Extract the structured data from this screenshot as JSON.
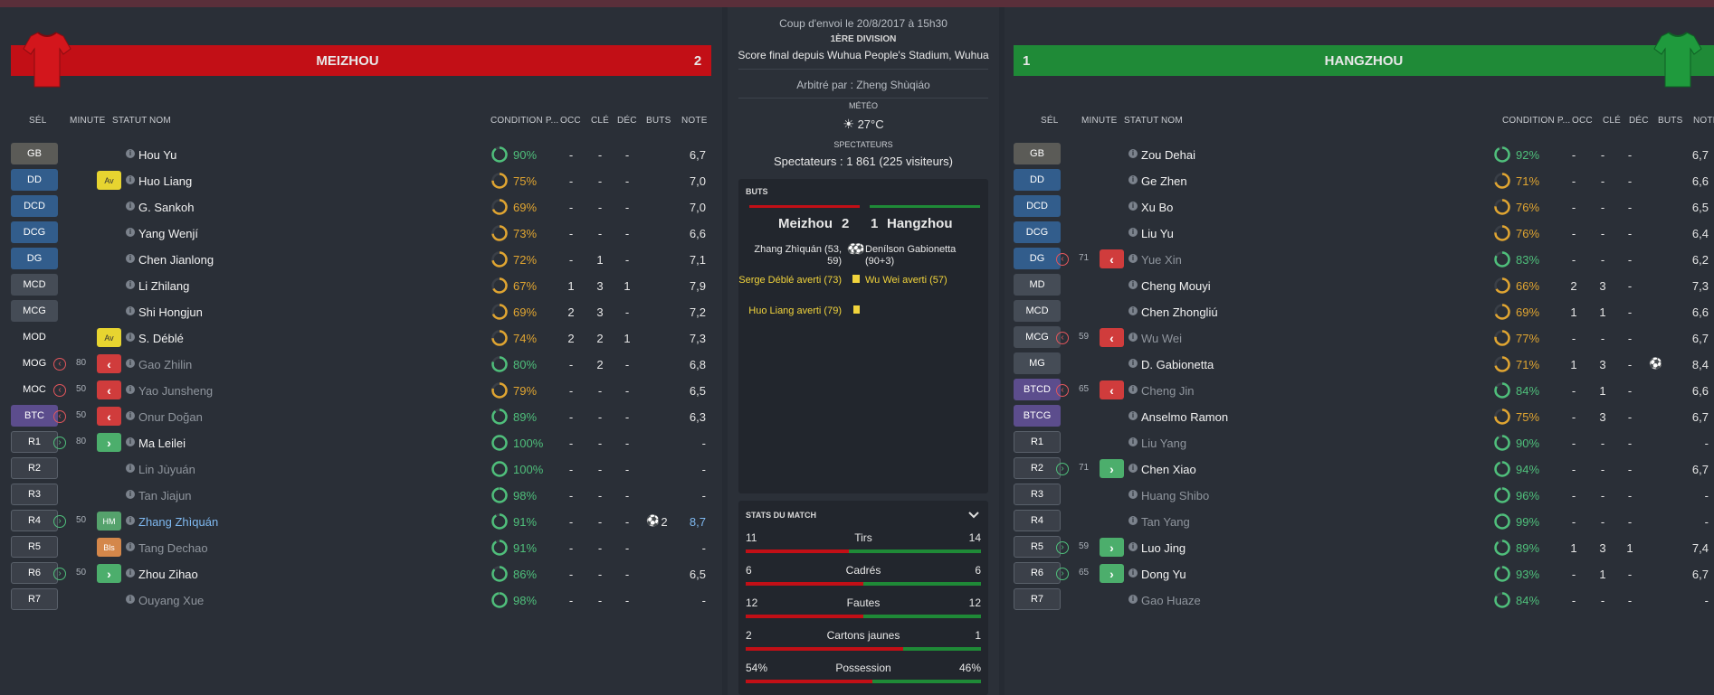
{
  "match": {
    "kickoff": "Coup d'envoi le 20/8/2017 à 15h30",
    "division": "1ÈRE DIVISION",
    "final": "Score final depuis Wuhua People's Stadium, Wuhua",
    "referee": "Arbitré par : Zheng Shùqiáo",
    "weather_label": "MÉTÉO",
    "weather": "27°C",
    "spectators_label": "SPECTATEURS",
    "spectators": "Spectateurs : 1 861 (225 visiteurs)",
    "goals_title": "BUTS",
    "home_name": "Meizhou",
    "home_score": "2",
    "away_score": "1",
    "away_name": "Hangzhou",
    "stats_title": "STATS DU MATCH"
  },
  "events_home": [
    {
      "text": "Zhang Zhìquán (53, 59)",
      "type": "goal"
    },
    {
      "text": "Serge Déblé averti (73)",
      "type": "card"
    },
    {
      "text": "Huo Liang averti (79)",
      "type": "card"
    }
  ],
  "events_away": [
    {
      "text": "Denílson Gabionetta (90+3)",
      "type": "goal"
    },
    {
      "text": "Wu Wei averti (57)",
      "type": "card"
    }
  ],
  "stats": [
    {
      "label": "Tirs",
      "home": "11",
      "away": "14",
      "home_share": 0.44
    },
    {
      "label": "Cadrés",
      "home": "6",
      "away": "6",
      "home_share": 0.5
    },
    {
      "label": "Fautes",
      "home": "12",
      "away": "12",
      "home_share": 0.5
    },
    {
      "label": "Cartons jaunes",
      "home": "2",
      "away": "1",
      "home_share": 0.67
    },
    {
      "label": "Possession",
      "home": "54%",
      "away": "46%",
      "home_share": 0.54
    }
  ],
  "headers": {
    "sel": "SÉL",
    "minute": "MINUTE",
    "statut": "STATUT",
    "nom": "NOM",
    "condition": "CONDITION P...",
    "occ": "OCC",
    "cle": "CLÉ",
    "dec": "DÉC",
    "buts": "BUTS",
    "note": "NOTE"
  },
  "colors": {
    "home": "#c20f16",
    "away": "#1f8a37",
    "cond_green": "#4fbf7b",
    "cond_amber": "#e0a531"
  },
  "home": {
    "name": "MEIZHOU",
    "score": "2",
    "players": [
      {
        "pos": "GB",
        "pos_type": "gk",
        "name": "Hou Yu",
        "cond": "90%",
        "occ": "-",
        "cle": "-",
        "dec": "-",
        "buts": "",
        "note": "6,7"
      },
      {
        "pos": "DD",
        "pos_type": "df",
        "status": "Av",
        "name": "Huo Liang",
        "cond": "75%",
        "occ": "-",
        "cle": "-",
        "dec": "-",
        "buts": "",
        "note": "7,0"
      },
      {
        "pos": "DCD",
        "pos_type": "df",
        "name": "G. Sankoh",
        "cond": "69%",
        "occ": "-",
        "cle": "-",
        "dec": "-",
        "buts": "",
        "note": "7,0"
      },
      {
        "pos": "DCG",
        "pos_type": "df",
        "name": "Yang Wenjí",
        "cond": "73%",
        "occ": "-",
        "cle": "-",
        "dec": "-",
        "buts": "",
        "note": "6,6"
      },
      {
        "pos": "DG",
        "pos_type": "df",
        "name": "Chen Jianlong",
        "cond": "72%",
        "occ": "-",
        "cle": "1",
        "dec": "-",
        "buts": "",
        "note": "7,1"
      },
      {
        "pos": "MCD",
        "pos_type": "mf",
        "name": "Li Zhilang",
        "cond": "67%",
        "occ": "1",
        "cle": "3",
        "dec": "1",
        "buts": "",
        "note": "7,9"
      },
      {
        "pos": "MCG",
        "pos_type": "mf",
        "name": "Shi Hongjun",
        "cond": "69%",
        "occ": "2",
        "cle": "3",
        "dec": "-",
        "buts": "",
        "note": "7,2"
      },
      {
        "pos": "MOD",
        "pos_type": "plain",
        "status": "Av",
        "name": "S. Déblé",
        "cond": "74%",
        "occ": "2",
        "cle": "2",
        "dec": "1",
        "buts": "",
        "note": "7,3"
      },
      {
        "pos": "MOG",
        "pos_type": "plain",
        "sub": "off",
        "minute": "80",
        "status": "out",
        "name": "Gao Zhilin",
        "dim": true,
        "cond": "80%",
        "occ": "-",
        "cle": "2",
        "dec": "-",
        "buts": "",
        "note": "6,8"
      },
      {
        "pos": "MOC",
        "pos_type": "plain",
        "sub": "off",
        "minute": "50",
        "status": "out",
        "name": "Yao Junsheng",
        "dim": true,
        "cond": "79%",
        "occ": "-",
        "cle": "-",
        "dec": "-",
        "buts": "",
        "note": "6,5"
      },
      {
        "pos": "BTC",
        "pos_type": "fw",
        "sub": "off",
        "minute": "50",
        "status": "out",
        "name": "Onur Doğan",
        "dim": true,
        "cond": "89%",
        "occ": "-",
        "cle": "-",
        "dec": "-",
        "buts": "",
        "note": "6,3"
      },
      {
        "pos": "R1",
        "pos_type": "sub",
        "sub": "on",
        "minute": "80",
        "status": "in",
        "name": "Ma Leilei",
        "cond": "100%",
        "occ": "-",
        "cle": "-",
        "dec": "-",
        "buts": "",
        "note": "-"
      },
      {
        "pos": "R2",
        "pos_type": "sub",
        "name": "Lin Jùyuán",
        "dim": true,
        "cond": "100%",
        "occ": "-",
        "cle": "-",
        "dec": "-",
        "buts": "",
        "note": "-"
      },
      {
        "pos": "R3",
        "pos_type": "sub",
        "name": "Tan Jiajun",
        "dim": true,
        "cond": "98%",
        "occ": "-",
        "cle": "-",
        "dec": "-",
        "buts": "",
        "note": "-"
      },
      {
        "pos": "R4",
        "pos_type": "sub",
        "sub": "on",
        "minute": "50",
        "status": "HM",
        "name": "Zhang Zhìquán",
        "hl": true,
        "cond": "91%",
        "occ": "-",
        "cle": "-",
        "dec": "-",
        "buts": "2",
        "note": "8,7"
      },
      {
        "pos": "R5",
        "pos_type": "sub",
        "status": "Bls",
        "name": "Tang Dechao",
        "dim": true,
        "cond": "91%",
        "occ": "-",
        "cle": "-",
        "dec": "-",
        "buts": "",
        "note": "-"
      },
      {
        "pos": "R6",
        "pos_type": "sub",
        "sub": "on",
        "minute": "50",
        "status": "in",
        "name": "Zhou Zihao",
        "cond": "86%",
        "occ": "-",
        "cle": "-",
        "dec": "-",
        "buts": "",
        "note": "6,5"
      },
      {
        "pos": "R7",
        "pos_type": "sub",
        "name": "Ouyang Xue",
        "dim": true,
        "cond": "98%",
        "occ": "-",
        "cle": "-",
        "dec": "-",
        "buts": "",
        "note": "-"
      }
    ]
  },
  "away": {
    "name": "HANGZHOU",
    "score": "1",
    "players": [
      {
        "pos": "GB",
        "pos_type": "gk",
        "name": "Zou Dehai",
        "cond": "92%",
        "occ": "-",
        "cle": "-",
        "dec": "-",
        "buts": "",
        "note": "6,7"
      },
      {
        "pos": "DD",
        "pos_type": "df",
        "name": "Ge Zhen",
        "cond": "71%",
        "occ": "-",
        "cle": "-",
        "dec": "-",
        "buts": "",
        "note": "6,6"
      },
      {
        "pos": "DCD",
        "pos_type": "df",
        "name": "Xu Bo",
        "cond": "76%",
        "occ": "-",
        "cle": "-",
        "dec": "-",
        "buts": "",
        "note": "6,5"
      },
      {
        "pos": "DCG",
        "pos_type": "df",
        "name": "Liu Yu",
        "cond": "76%",
        "occ": "-",
        "cle": "-",
        "dec": "-",
        "buts": "",
        "note": "6,4"
      },
      {
        "pos": "DG",
        "pos_type": "df",
        "sub": "off",
        "minute": "71",
        "status": "out",
        "name": "Yue Xin",
        "dim": true,
        "cond": "83%",
        "occ": "-",
        "cle": "-",
        "dec": "-",
        "buts": "",
        "note": "6,2"
      },
      {
        "pos": "MD",
        "pos_type": "mf",
        "name": "Cheng Mouyi",
        "cond": "66%",
        "occ": "2",
        "cle": "3",
        "dec": "-",
        "buts": "",
        "note": "7,3"
      },
      {
        "pos": "MCD",
        "pos_type": "mf",
        "name": "Chen Zhongliú",
        "cond": "69%",
        "occ": "1",
        "cle": "1",
        "dec": "-",
        "buts": "",
        "note": "6,6"
      },
      {
        "pos": "MCG",
        "pos_type": "mf",
        "sub": "off",
        "minute": "59",
        "status": "out",
        "name": "Wu Wei",
        "dim": true,
        "cond": "77%",
        "occ": "-",
        "cle": "-",
        "dec": "-",
        "buts": "",
        "note": "6,7"
      },
      {
        "pos": "MG",
        "pos_type": "mf",
        "name": "D. Gabionetta",
        "cond": "71%",
        "occ": "1",
        "cle": "3",
        "dec": "-",
        "buts": "goal",
        "note": "8,4"
      },
      {
        "pos": "BTCD",
        "pos_type": "fw",
        "sub": "off",
        "minute": "65",
        "status": "out",
        "name": "Cheng Jin",
        "dim": true,
        "cond": "84%",
        "occ": "-",
        "cle": "1",
        "dec": "-",
        "buts": "",
        "note": "6,6"
      },
      {
        "pos": "BTCG",
        "pos_type": "fw",
        "name": "Anselmo Ramon",
        "cond": "75%",
        "occ": "-",
        "cle": "3",
        "dec": "-",
        "buts": "",
        "note": "6,7"
      },
      {
        "pos": "R1",
        "pos_type": "sub",
        "name": "Liu Yang",
        "dim": true,
        "cond": "90%",
        "occ": "-",
        "cle": "-",
        "dec": "-",
        "buts": "",
        "note": "-"
      },
      {
        "pos": "R2",
        "pos_type": "sub",
        "sub": "on",
        "minute": "71",
        "status": "in",
        "name": "Chen Xiao",
        "cond": "94%",
        "occ": "-",
        "cle": "-",
        "dec": "-",
        "buts": "",
        "note": "6,7"
      },
      {
        "pos": "R3",
        "pos_type": "sub",
        "name": "Huang Shibo",
        "dim": true,
        "cond": "96%",
        "occ": "-",
        "cle": "-",
        "dec": "-",
        "buts": "",
        "note": "-"
      },
      {
        "pos": "R4",
        "pos_type": "sub",
        "name": "Tan Yang",
        "dim": true,
        "cond": "99%",
        "occ": "-",
        "cle": "-",
        "dec": "-",
        "buts": "",
        "note": "-"
      },
      {
        "pos": "R5",
        "pos_type": "sub",
        "sub": "on",
        "minute": "59",
        "status": "in",
        "name": "Luo Jing",
        "cond": "89%",
        "occ": "1",
        "cle": "3",
        "dec": "1",
        "buts": "",
        "note": "7,4"
      },
      {
        "pos": "R6",
        "pos_type": "sub",
        "sub": "on",
        "minute": "65",
        "status": "in",
        "name": "Dong Yu",
        "cond": "93%",
        "occ": "-",
        "cle": "1",
        "dec": "-",
        "buts": "",
        "note": "6,7"
      },
      {
        "pos": "R7",
        "pos_type": "sub",
        "name": "Gao Huaze",
        "dim": true,
        "cond": "84%",
        "occ": "-",
        "cle": "-",
        "dec": "-",
        "buts": "",
        "note": "-"
      }
    ]
  }
}
